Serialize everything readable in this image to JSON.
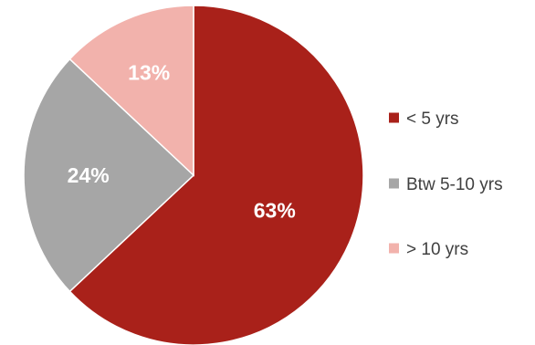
{
  "chart_data": {
    "type": "pie",
    "slices": [
      {
        "label": "< 5 yrs",
        "value": 63,
        "display": "63%",
        "color": "#A9211A"
      },
      {
        "label": "Btw 5-10 yrs",
        "value": 24,
        "display": "24%",
        "color": "#A6A6A6"
      },
      {
        "label": "> 10 yrs",
        "value": 13,
        "display": "13%",
        "color": "#F2B2AC"
      }
    ],
    "start_angle": "12 o'clock",
    "direction": "clockwise",
    "legend_position": "right",
    "label_color": "#FFFFFF",
    "legend_text_color": "#404040"
  }
}
